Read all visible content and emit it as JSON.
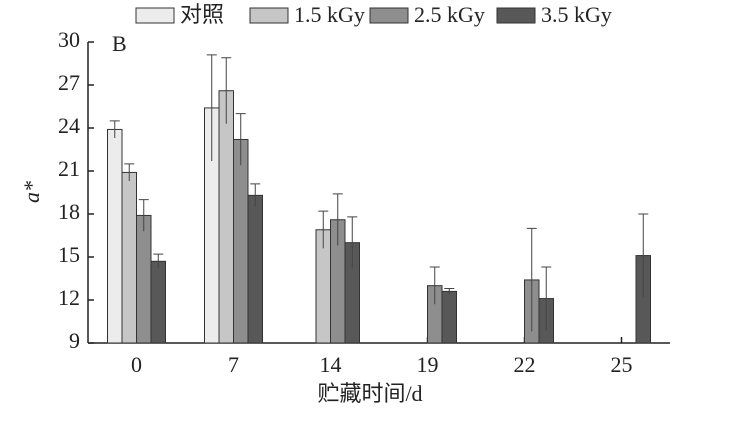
{
  "chart_data": {
    "type": "bar",
    "annotation": "B",
    "y_label": "a*",
    "x_label": "贮藏时间/d",
    "categories": [
      "0",
      "7",
      "14",
      "19",
      "22",
      "25"
    ],
    "series": [
      {
        "name": "对照",
        "color": "#ececec",
        "values": [
          23.9,
          25.4,
          null,
          null,
          null,
          null
        ],
        "errors": [
          0.6,
          3.7,
          null,
          null,
          null,
          null
        ]
      },
      {
        "name": "1.5 kGy",
        "color": "#c6c6c6",
        "values": [
          20.9,
          26.6,
          16.9,
          null,
          null,
          null
        ],
        "errors": [
          0.6,
          2.3,
          1.3,
          null,
          null,
          null
        ]
      },
      {
        "name": "2.5 kGy",
        "color": "#8e8e8e",
        "values": [
          17.9,
          23.2,
          17.6,
          13.0,
          13.4,
          null
        ],
        "errors": [
          1.1,
          1.8,
          1.8,
          1.3,
          3.6,
          null
        ]
      },
      {
        "name": "3.5 kGy",
        "color": "#585858",
        "values": [
          14.7,
          19.3,
          16.0,
          12.6,
          12.1,
          15.1
        ],
        "errors": [
          0.5,
          0.8,
          1.8,
          0.2,
          2.2,
          2.9
        ]
      }
    ],
    "ylim": [
      9,
      30
    ],
    "yticks": [
      9,
      12,
      15,
      18,
      21,
      24,
      27,
      30
    ]
  }
}
